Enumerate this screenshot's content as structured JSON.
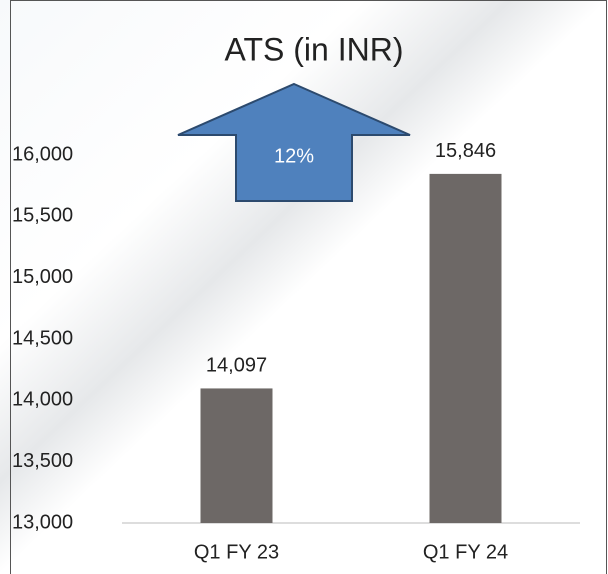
{
  "chart_data": {
    "type": "bar",
    "title": "ATS (in INR)",
    "categories": [
      "Q1 FY 23",
      "Q1 FY 24"
    ],
    "values": [
      14097,
      15846
    ],
    "value_labels": [
      "14,097",
      "15,846"
    ],
    "color": "#6d6866",
    "ylim": [
      13000,
      16000
    ],
    "yticks": [
      {
        "value": 13000,
        "label": "13,000"
      },
      {
        "value": 13500,
        "label": "13,500"
      },
      {
        "value": 14000,
        "label": "14,000"
      },
      {
        "value": 14500,
        "label": "14,500"
      },
      {
        "value": 15000,
        "label": "15,000"
      },
      {
        "value": 15500,
        "label": "15,500"
      },
      {
        "value": 16000,
        "label": "16,000"
      }
    ],
    "annotation": "12%"
  }
}
